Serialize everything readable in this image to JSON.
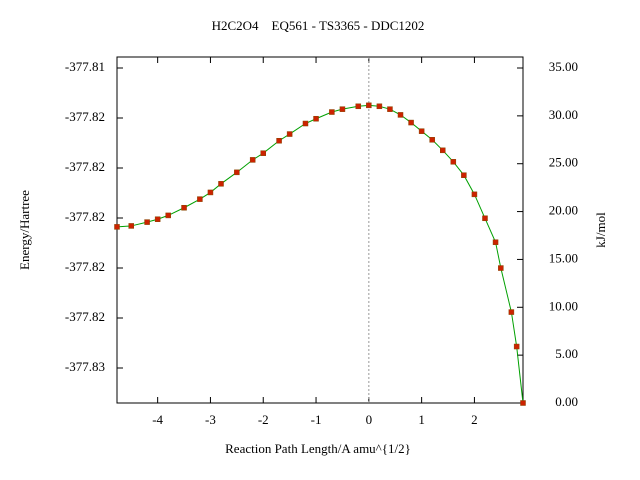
{
  "chart_data": {
    "type": "line",
    "title": "H2C2O4    EQ561 - TS3365 - DDC1202",
    "x_label": "Reaction Path Length/A amu^{1/2}",
    "y_label": "Energy/Hartree",
    "y2_label": "kJ/mol",
    "x": [
      -4.77,
      -4.5,
      -4.2,
      -4.0,
      -3.8,
      -3.5,
      -3.2,
      -3.0,
      -2.8,
      -2.5,
      -2.2,
      -2.0,
      -1.7,
      -1.5,
      -1.2,
      -1.0,
      -0.7,
      -0.5,
      -0.2,
      0.0,
      0.2,
      0.4,
      0.6,
      0.8,
      1.0,
      1.2,
      1.4,
      1.6,
      1.8,
      2.0,
      2.2,
      2.4,
      2.5,
      2.7,
      2.8,
      2.92
    ],
    "series": [
      {
        "name": "IRC",
        "color": "#00a000",
        "marker_color": "#cc2200",
        "axis": "y2",
        "values": [
          18.4,
          18.5,
          18.9,
          19.2,
          19.6,
          20.4,
          21.3,
          22.0,
          22.9,
          24.1,
          25.4,
          26.1,
          27.4,
          28.1,
          29.2,
          29.7,
          30.4,
          30.7,
          31.0,
          31.1,
          31.0,
          30.7,
          30.1,
          29.3,
          28.4,
          27.5,
          26.4,
          25.2,
          23.8,
          21.8,
          19.3,
          16.8,
          14.1,
          9.5,
          5.9,
          0
        ]
      }
    ],
    "xlim": [
      -4.77,
      2.92
    ],
    "xticks": [
      -4,
      -3,
      -2,
      -1,
      0,
      1,
      2
    ],
    "ylim": [
      -377.8274,
      -377.81356
    ],
    "yticks": [
      {
        "value": -377.826,
        "label": "-377.83"
      },
      {
        "value": -377.824,
        "label": "-377.82"
      },
      {
        "value": -377.822,
        "label": "-377.82"
      },
      {
        "value": -377.82,
        "label": "-377.82"
      },
      {
        "value": -377.818,
        "label": "-377.82"
      },
      {
        "value": -377.816,
        "label": "-377.82"
      },
      {
        "value": -377.814,
        "label": "-377.81"
      }
    ],
    "y2lim": [
      0,
      36.15
    ],
    "y2ticks": [
      {
        "value": 0,
        "label": "0.00"
      },
      {
        "value": 5,
        "label": "5.00"
      },
      {
        "value": 10,
        "label": "10.00"
      },
      {
        "value": 15,
        "label": "15.00"
      },
      {
        "value": 20,
        "label": "20.00"
      },
      {
        "value": 25,
        "label": "25.00"
      },
      {
        "value": 30,
        "label": "30.00"
      },
      {
        "value": 35,
        "label": "35.00"
      }
    ]
  }
}
